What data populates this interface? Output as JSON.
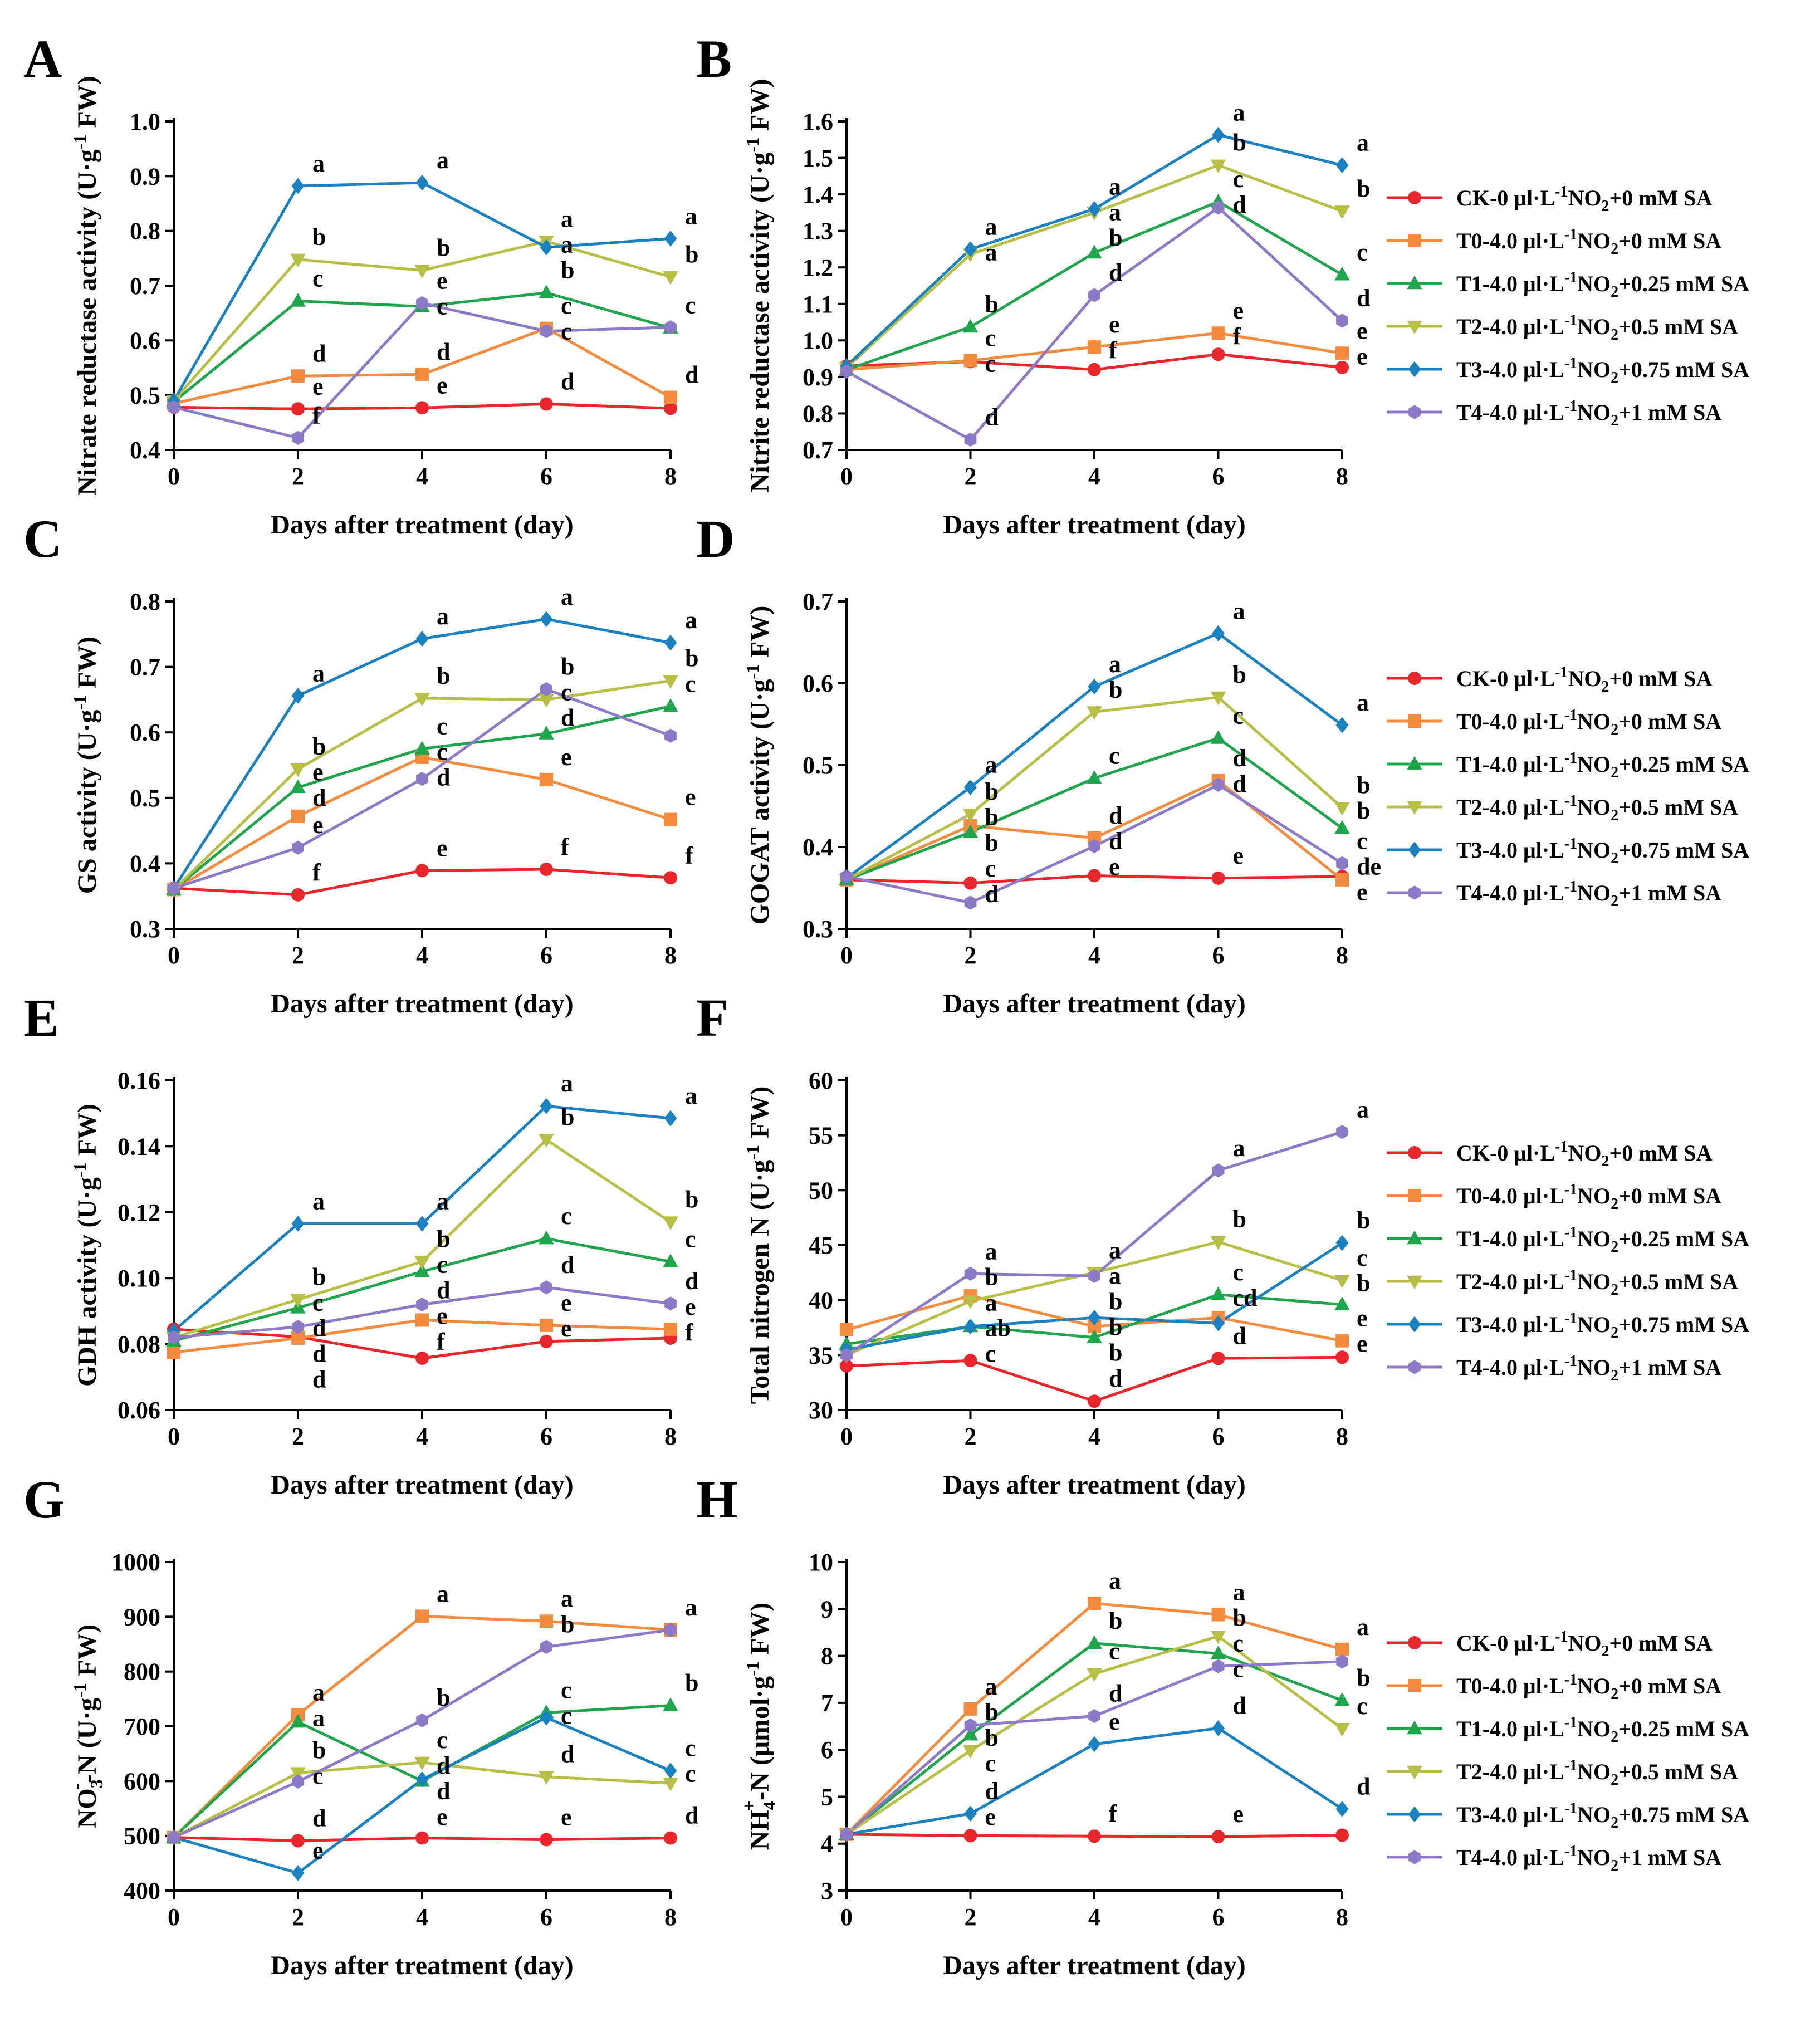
{
  "figure": {
    "x_axis_title": "Days after treatment (day)",
    "x_ticks": [
      "0",
      "2",
      "4",
      "6",
      "8"
    ]
  },
  "colors": {
    "CK": "#e8262b",
    "T0": "#f58c3d",
    "T1": "#1fa64c",
    "T2": "#b8bf45",
    "T3": "#1a82c0",
    "T4": "#8c7ac9"
  },
  "legend_entries": [
    {
      "key": "CK",
      "prefix": "CK-0 μl·L",
      "sup": "-1",
      "mid": "NO",
      "sub": "2",
      "suffix": "+0 mM SA",
      "marker": "circle"
    },
    {
      "key": "T0",
      "prefix": "T0-4.0 μl·L",
      "sup": "-1",
      "mid": "NO",
      "sub": "2",
      "suffix": "+0 mM SA",
      "marker": "square"
    },
    {
      "key": "T1",
      "prefix": "T1-4.0 μl·L",
      "sup": "-1",
      "mid": "NO",
      "sub": "2",
      "suffix": "+0.25 mM SA",
      "marker": "triangle-up"
    },
    {
      "key": "T2",
      "prefix": "T2-4.0 μl·L",
      "sup": "-1",
      "mid": "NO",
      "sub": "2",
      "suffix": "+0.5 mM SA",
      "marker": "triangle-down"
    },
    {
      "key": "T3",
      "prefix": "T3-4.0 μl·L",
      "sup": "-1",
      "mid": "NO",
      "sub": "2",
      "suffix": "+0.75 mM SA",
      "marker": "diamond"
    },
    {
      "key": "T4",
      "prefix": "T4-4.0 μl·L",
      "sup": "-1",
      "mid": "NO",
      "sub": "2",
      "suffix": "+1 mM SA",
      "marker": "hexagon"
    }
  ],
  "chart_data": [
    {
      "type": "line",
      "panel": "A",
      "ylabel_parts": [
        "Nitrate reductase activity (U·g",
        "-1",
        " FW)"
      ],
      "x": [
        0,
        2,
        4,
        6,
        8
      ],
      "ylim": [
        0.4,
        1.0
      ],
      "yticks": [
        "0.4",
        "0.5",
        "0.6",
        "0.7",
        "0.8",
        "0.9",
        "1.0"
      ],
      "series": [
        {
          "name": "CK",
          "values": [
            0.478,
            0.475,
            0.477,
            0.484,
            0.476
          ],
          "letters": [
            "",
            "e",
            "e",
            "d",
            ""
          ]
        },
        {
          "name": "T0",
          "values": [
            0.485,
            0.535,
            0.538,
            0.622,
            0.496
          ],
          "letters": [
            "",
            "d",
            "d",
            "c",
            "d"
          ]
        },
        {
          "name": "T1",
          "values": [
            0.488,
            0.672,
            0.662,
            0.687,
            0.623
          ],
          "letters": [
            "",
            "c",
            "c",
            "b",
            "c"
          ]
        },
        {
          "name": "T2",
          "values": [
            0.49,
            0.748,
            0.728,
            0.781,
            0.716
          ],
          "letters": [
            "",
            "b",
            "b",
            "a",
            "b"
          ]
        },
        {
          "name": "T3",
          "values": [
            0.49,
            0.882,
            0.888,
            0.77,
            0.786
          ],
          "letters": [
            "",
            "a",
            "a",
            "a",
            "a"
          ]
        },
        {
          "name": "T4",
          "values": [
            0.478,
            0.422,
            0.668,
            0.617,
            0.624
          ],
          "letters": [
            "",
            "f",
            "e",
            "c",
            ""
          ]
        }
      ]
    },
    {
      "type": "line",
      "panel": "B",
      "ylabel_parts": [
        "Nitrite reductase activity (U·g",
        "-1",
        " FW)"
      ],
      "x": [
        0,
        2,
        4,
        6,
        8
      ],
      "ylim": [
        0.7,
        1.6
      ],
      "yticks": [
        "0.7",
        "0.8",
        "0.9",
        "1.0",
        "1.1",
        "1.2",
        "1.3",
        "1.4",
        "1.5",
        "1.6"
      ],
      "series": [
        {
          "name": "CK",
          "values": [
            0.93,
            0.942,
            0.92,
            0.962,
            0.926
          ],
          "letters": [
            "",
            "c",
            "f",
            "f",
            "e"
          ]
        },
        {
          "name": "T0",
          "values": [
            0.92,
            0.945,
            0.982,
            1.02,
            0.965
          ],
          "letters": [
            "",
            "c",
            "e",
            "e",
            "e"
          ]
        },
        {
          "name": "T1",
          "values": [
            0.92,
            1.037,
            1.24,
            1.38,
            1.18
          ],
          "letters": [
            "",
            "b",
            "b",
            "c",
            "c"
          ]
        },
        {
          "name": "T2",
          "values": [
            0.925,
            1.236,
            1.35,
            1.48,
            1.354
          ],
          "letters": [
            "",
            "a",
            "a",
            "b",
            "b"
          ]
        },
        {
          "name": "T3",
          "values": [
            0.93,
            1.25,
            1.36,
            1.563,
            1.48
          ],
          "letters": [
            "",
            "a",
            "a",
            "a",
            "a"
          ]
        },
        {
          "name": "T4",
          "values": [
            0.915,
            0.728,
            1.124,
            1.364,
            1.054
          ],
          "letters": [
            "",
            "d",
            "d",
            "d",
            "d"
          ]
        }
      ]
    },
    {
      "type": "line",
      "panel": "C",
      "ylabel_parts": [
        "GS activity (U·g",
        "-1",
        " FW)"
      ],
      "x": [
        0,
        2,
        4,
        6,
        8
      ],
      "ylim": [
        0.3,
        0.8
      ],
      "yticks": [
        "0.3",
        "0.4",
        "0.5",
        "0.6",
        "0.7",
        "0.8"
      ],
      "series": [
        {
          "name": "CK",
          "values": [
            0.362,
            0.352,
            0.389,
            0.391,
            0.378
          ],
          "letters": [
            "",
            "f",
            "e",
            "f",
            "f"
          ]
        },
        {
          "name": "T0",
          "values": [
            0.36,
            0.472,
            0.562,
            0.528,
            0.467
          ],
          "letters": [
            "",
            "d",
            "c",
            "e",
            "e"
          ]
        },
        {
          "name": "T1",
          "values": [
            0.36,
            0.516,
            0.575,
            0.598,
            0.64
          ],
          "letters": [
            "",
            "e",
            "c",
            "d",
            "c"
          ]
        },
        {
          "name": "T2",
          "values": [
            0.36,
            0.544,
            0.652,
            0.65,
            0.679
          ],
          "letters": [
            "",
            "b",
            "b",
            "c",
            "b"
          ]
        },
        {
          "name": "T3",
          "values": [
            0.362,
            0.656,
            0.743,
            0.773,
            0.737
          ],
          "letters": [
            "",
            "a",
            "a",
            "a",
            "a"
          ]
        },
        {
          "name": "T4",
          "values": [
            0.362,
            0.424,
            0.529,
            0.666,
            0.595
          ],
          "letters": [
            "",
            "e",
            "d",
            "b",
            ""
          ]
        }
      ]
    },
    {
      "type": "line",
      "panel": "D",
      "ylabel_parts": [
        "GOGAT activity (U·g",
        "-1",
        " FW)"
      ],
      "x": [
        0,
        2,
        4,
        6,
        8
      ],
      "ylim": [
        0.3,
        0.7
      ],
      "yticks": [
        "0.3",
        "0.4",
        "0.5",
        "0.6",
        "0.7"
      ],
      "series": [
        {
          "name": "CK",
          "values": [
            0.36,
            0.356,
            0.365,
            0.362,
            0.364
          ],
          "letters": [
            "",
            "c",
            "e",
            "e",
            "de"
          ]
        },
        {
          "name": "T0",
          "values": [
            0.36,
            0.426,
            0.411,
            0.481,
            0.36
          ],
          "letters": [
            "",
            "b",
            "d",
            "d",
            "e"
          ]
        },
        {
          "name": "T1",
          "values": [
            0.36,
            0.418,
            0.484,
            0.533,
            0.423
          ],
          "letters": [
            "",
            "b",
            "c",
            "c",
            "b"
          ]
        },
        {
          "name": "T2",
          "values": [
            0.36,
            0.44,
            0.565,
            0.583,
            0.448
          ],
          "letters": [
            "",
            "b",
            "b",
            "b",
            "b"
          ]
        },
        {
          "name": "T3",
          "values": [
            0.362,
            0.473,
            0.596,
            0.661,
            0.549
          ],
          "letters": [
            "",
            "a",
            "a",
            "a",
            "a"
          ]
        },
        {
          "name": "T4",
          "values": [
            0.364,
            0.332,
            0.401,
            0.476,
            0.38
          ],
          "letters": [
            "",
            "d",
            "d",
            "d",
            "c"
          ]
        }
      ]
    },
    {
      "type": "line",
      "panel": "E",
      "ylabel_parts": [
        "GDH activity (U·g",
        "-1",
        " FW)"
      ],
      "x": [
        0,
        2,
        4,
        6,
        8
      ],
      "ylim": [
        0.06,
        0.16
      ],
      "yticks": [
        "0.06",
        "0.08",
        "0.10",
        "0.12",
        "0.14",
        "0.16"
      ],
      "series": [
        {
          "name": "CK",
          "values": [
            0.0845,
            0.0822,
            0.0757,
            0.0808,
            0.0818
          ],
          "letters": [
            "",
            "d",
            "f",
            "e",
            "f"
          ]
        },
        {
          "name": "T0",
          "values": [
            0.0775,
            0.0818,
            0.0873,
            0.0857,
            0.0845
          ],
          "letters": [
            "",
            "d",
            "e",
            "e",
            "e"
          ]
        },
        {
          "name": "T1",
          "values": [
            0.081,
            0.091,
            0.102,
            0.112,
            0.105
          ],
          "letters": [
            "",
            "c",
            "c",
            "c",
            "c"
          ]
        },
        {
          "name": "T2",
          "values": [
            0.082,
            0.0935,
            0.105,
            0.142,
            0.117
          ],
          "letters": [
            "",
            "b",
            "b",
            "b",
            "b"
          ]
        },
        {
          "name": "T3",
          "values": [
            0.084,
            0.1165,
            0.1165,
            0.1522,
            0.1485
          ],
          "letters": [
            "",
            "a",
            "a",
            "a",
            "a"
          ]
        },
        {
          "name": "T4",
          "values": [
            0.082,
            0.0852,
            0.092,
            0.0972,
            0.0923
          ],
          "letters": [
            "",
            "d",
            "d",
            "d",
            "d"
          ]
        }
      ]
    },
    {
      "type": "line",
      "panel": "F",
      "ylabel_parts": [
        "Total nitrogen N (U·g",
        "-1",
        " FW)"
      ],
      "x": [
        0,
        2,
        4,
        6,
        8
      ],
      "ylim": [
        30,
        60
      ],
      "yticks": [
        "30",
        "35",
        "40",
        "45",
        "50",
        "55",
        "60"
      ],
      "series": [
        {
          "name": "CK",
          "values": [
            34.0,
            34.5,
            30.8,
            34.7,
            34.8
          ],
          "letters": [
            "",
            "c",
            "d",
            "d",
            "e"
          ]
        },
        {
          "name": "T0",
          "values": [
            37.3,
            40.4,
            37.6,
            38.4,
            36.3
          ],
          "letters": [
            "",
            "b",
            "b",
            "cd",
            "e"
          ]
        },
        {
          "name": "T1",
          "values": [
            36.0,
            37.6,
            36.6,
            40.5,
            39.6
          ],
          "letters": [
            "",
            "ab",
            "b",
            "c",
            "b"
          ]
        },
        {
          "name": "T2",
          "values": [
            35.0,
            39.9,
            42.5,
            45.3,
            41.8
          ],
          "letters": [
            "",
            "a",
            "a",
            "b",
            "c"
          ]
        },
        {
          "name": "T3",
          "values": [
            35.5,
            37.6,
            38.4,
            37.9,
            45.2
          ],
          "letters": [
            "",
            "",
            "b",
            "",
            "b"
          ]
        },
        {
          "name": "T4",
          "values": [
            35.0,
            42.4,
            42.2,
            51.8,
            55.3
          ],
          "letters": [
            "",
            "a",
            "a",
            "a",
            "a"
          ]
        }
      ]
    },
    {
      "type": "line",
      "panel": "G",
      "ylabel_parts": [
        "NO",
        "3",
        "-",
        "-N (U·g",
        "-1",
        " FW)"
      ],
      "x": [
        0,
        2,
        4,
        6,
        8
      ],
      "ylim": [
        400,
        1000
      ],
      "yticks": [
        "400",
        "500",
        "600",
        "700",
        "800",
        "900",
        "1000"
      ],
      "series": [
        {
          "name": "CK",
          "values": [
            497,
            491,
            496,
            493,
            496
          ],
          "letters": [
            "",
            "d",
            "e",
            "e",
            "d"
          ]
        },
        {
          "name": "T0",
          "values": [
            497,
            721,
            901,
            892,
            876
          ],
          "letters": [
            "",
            "a",
            "a",
            "a",
            "a"
          ]
        },
        {
          "name": "T1",
          "values": [
            497,
            708,
            600,
            725,
            738
          ],
          "letters": [
            "",
            "a",
            "d",
            "c",
            "b"
          ]
        },
        {
          "name": "T2",
          "values": [
            497,
            615,
            634,
            608,
            596
          ],
          "letters": [
            "",
            "b",
            "c",
            "d",
            "c"
          ]
        },
        {
          "name": "T3",
          "values": [
            497,
            432,
            603,
            716,
            619
          ],
          "letters": [
            "",
            "e",
            "d",
            "c",
            "c"
          ]
        },
        {
          "name": "T4",
          "values": [
            497,
            599,
            711,
            845,
            876
          ],
          "letters": [
            "",
            "c",
            "b",
            "b",
            ""
          ]
        }
      ]
    },
    {
      "type": "line",
      "panel": "H",
      "ylabel_parts": [
        "NH",
        "4",
        "+",
        "-N (μmol·g",
        "-1",
        " FW)"
      ],
      "x": [
        0,
        2,
        4,
        6,
        8
      ],
      "ylim": [
        3,
        10
      ],
      "yticks": [
        "3",
        "4",
        "5",
        "6",
        "7",
        "8",
        "9",
        "10"
      ],
      "series": [
        {
          "name": "CK",
          "values": [
            4.2,
            4.17,
            4.16,
            4.15,
            4.18
          ],
          "letters": [
            "",
            "e",
            "f",
            "e",
            ""
          ]
        },
        {
          "name": "T0",
          "values": [
            4.2,
            6.87,
            9.12,
            8.88,
            8.14
          ],
          "letters": [
            "",
            "a",
            "a",
            "a",
            "a"
          ]
        },
        {
          "name": "T1",
          "values": [
            4.2,
            6.32,
            8.27,
            8.05,
            7.05
          ],
          "letters": [
            "",
            "b",
            "b",
            "c",
            "b"
          ]
        },
        {
          "name": "T2",
          "values": [
            4.2,
            5.98,
            7.62,
            8.42,
            6.45
          ],
          "letters": [
            "",
            "c",
            "c",
            "b",
            "c"
          ]
        },
        {
          "name": "T3",
          "values": [
            4.2,
            4.64,
            6.12,
            6.46,
            4.74
          ],
          "letters": [
            "",
            "d",
            "e",
            "d",
            "d"
          ]
        },
        {
          "name": "T4",
          "values": [
            4.2,
            6.52,
            6.72,
            7.78,
            7.88
          ],
          "letters": [
            "",
            "b",
            "d",
            "c",
            ""
          ]
        }
      ]
    }
  ]
}
